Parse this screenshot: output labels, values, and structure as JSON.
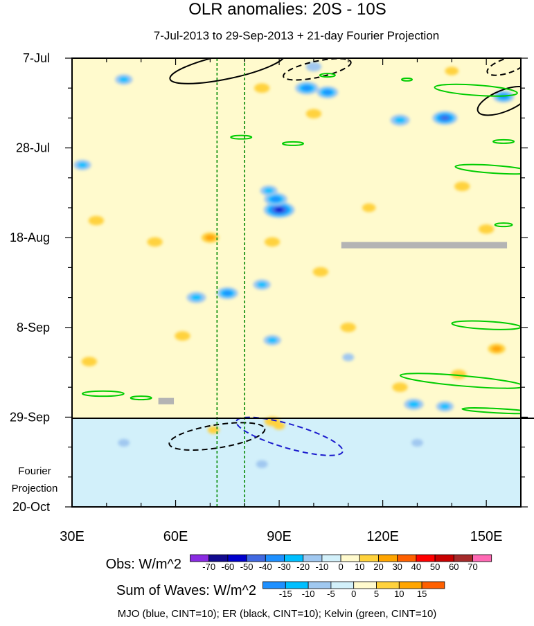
{
  "chart_data": {
    "type": "heatmap",
    "title": "OLR anomalies: 20S - 10S",
    "subtitle": "7-Jul-2013 to 29-Sep-2013 + 21-day Fourier Projection",
    "x_axis": {
      "range": [
        30,
        160
      ],
      "unit": "degrees longitude East",
      "ticks": [
        {
          "value": 30,
          "label": "30E"
        },
        {
          "value": 60,
          "label": "60E"
        },
        {
          "value": 90,
          "label": "90E"
        },
        {
          "value": 120,
          "label": "120E"
        },
        {
          "value": 150,
          "label": "150E"
        }
      ]
    },
    "y_axis": {
      "range_days": [
        0,
        105
      ],
      "direction": "time increases downward",
      "ticks": [
        {
          "day": 0,
          "label": "7-Jul"
        },
        {
          "day": 21,
          "label": "28-Jul"
        },
        {
          "day": 42,
          "label": "18-Aug"
        },
        {
          "day": 63,
          "label": "8-Sep"
        },
        {
          "day": 84,
          "label": "29-Sep"
        },
        {
          "day": 105,
          "label": "20-Oct"
        }
      ]
    },
    "projection": {
      "start_day": 84,
      "label_line1": "Fourier",
      "label_line2": "Projection"
    },
    "reference_lines_lon": [
      72,
      80
    ],
    "obs_colorbar": {
      "title": "Obs: W/m^2",
      "levels": [
        -70,
        -60,
        -50,
        -40,
        -30,
        -20,
        -10,
        0,
        10,
        20,
        30,
        40,
        50,
        60,
        70
      ],
      "labels": [
        "-70",
        "-60",
        "-50",
        "-40",
        "-30",
        "-20",
        "-10",
        "0",
        "10",
        "20",
        "30",
        "40",
        "50",
        "60",
        "70"
      ],
      "colors": [
        "#8a2be2",
        "#120a8f",
        "#0000cd",
        "#4169e1",
        "#1e90ff",
        "#00bfff",
        "#a0c8f0",
        "#d2f0fa",
        "#fffacd",
        "#ffd23c",
        "#ffa500",
        "#ff6000",
        "#ff0000",
        "#c80000",
        "#a52a2a",
        "#ff69b4"
      ]
    },
    "waves_colorbar": {
      "title": "Sum of Waves: W/m^2",
      "levels": [
        -15,
        -10,
        -5,
        0,
        5,
        10,
        15
      ],
      "labels": [
        "-15",
        "-10",
        "-5",
        "0",
        "5",
        "10",
        "15"
      ],
      "colors": [
        "#1e90ff",
        "#00bfff",
        "#a0c8f0",
        "#d2f0fa",
        "#fffacd",
        "#ffd23c",
        "#ffa500",
        "#ff6000"
      ]
    },
    "caption": "MJO (blue, CINT=10); ER (black, CINT=10); Kelvin (green, CINT=10)",
    "anomaly_features": [
      {
        "lon": 90,
        "day": 35.5,
        "value": -55
      },
      {
        "lon": 89,
        "day": 33,
        "value": -35
      },
      {
        "lon": 87,
        "day": 31,
        "value": -20
      },
      {
        "lon": 98,
        "day": 7,
        "value": -35
      },
      {
        "lon": 104,
        "day": 8,
        "value": -30
      },
      {
        "lon": 138,
        "day": 14,
        "value": -40
      },
      {
        "lon": 125,
        "day": 14.5,
        "value": -25
      },
      {
        "lon": 75,
        "day": 55,
        "value": -30
      },
      {
        "lon": 66,
        "day": 56,
        "value": -25
      },
      {
        "lon": 85,
        "day": 53,
        "value": -20
      },
      {
        "lon": 45,
        "day": 5,
        "value": -20
      },
      {
        "lon": 33,
        "day": 25,
        "value": -20
      },
      {
        "lon": 129,
        "day": 81,
        "value": -25
      },
      {
        "lon": 138,
        "day": 81.5,
        "value": -20
      },
      {
        "lon": 88,
        "day": 66,
        "value": -20
      },
      {
        "lon": 100,
        "day": 2,
        "value": -15
      },
      {
        "lon": 155,
        "day": 9,
        "value": -30
      },
      {
        "lon": 54,
        "day": 43,
        "value": 15
      },
      {
        "lon": 70,
        "day": 42,
        "value": 20
      },
      {
        "lon": 88,
        "day": 43,
        "value": 15
      },
      {
        "lon": 37,
        "day": 38,
        "value": 15
      },
      {
        "lon": 100,
        "day": 13,
        "value": 15
      },
      {
        "lon": 85,
        "day": 7,
        "value": 15
      },
      {
        "lon": 102,
        "day": 50,
        "value": 15
      },
      {
        "lon": 110,
        "day": 63,
        "value": 15
      },
      {
        "lon": 143,
        "day": 30,
        "value": 15
      },
      {
        "lon": 150,
        "day": 40,
        "value": 15
      },
      {
        "lon": 153,
        "day": 68,
        "value": 20
      },
      {
        "lon": 35,
        "day": 71,
        "value": 15
      },
      {
        "lon": 125,
        "day": 77,
        "value": 15
      },
      {
        "lon": 88,
        "day": 85,
        "value": 15
      },
      {
        "lon": 142,
        "day": 74,
        "value": 15
      },
      {
        "lon": 62,
        "day": 65,
        "value": 15
      },
      {
        "lon": 116,
        "day": 35,
        "value": 10
      },
      {
        "lon": 140,
        "day": 3,
        "value": 10
      }
    ],
    "wave_features": [
      {
        "lon": 110,
        "day": 70,
        "value": -5
      },
      {
        "lon": 85,
        "day": 95,
        "value": -5
      },
      {
        "lon": 130,
        "day": 90,
        "value": -5
      },
      {
        "lon": 45,
        "day": 90,
        "value": -5
      },
      {
        "lon": 90,
        "day": 86,
        "value": 5
      },
      {
        "lon": 71,
        "day": 87,
        "value": 5
      }
    ],
    "missing_data": [
      {
        "lon": [
          108,
          156
        ],
        "day": [
          43,
          44.5
        ]
      },
      {
        "lon": [
          55,
          59.5
        ],
        "day": [
          79.5,
          81
        ]
      }
    ],
    "contours": [
      {
        "wave": "ER",
        "color": "black",
        "sign": "positive",
        "cx": 75,
        "cy": 2,
        "rx": 17,
        "ry": 2.8,
        "angle": -12
      },
      {
        "wave": "ER",
        "color": "black",
        "sign": "negative",
        "cx": 101,
        "cy": 2.6,
        "rx": 10,
        "ry": 1.9,
        "angle": -12
      },
      {
        "wave": "ER",
        "color": "black",
        "sign": "negative",
        "cx": 156,
        "cy": 1.8,
        "rx": 6,
        "ry": 1.7,
        "angle": -18
      },
      {
        "wave": "ER",
        "color": "black",
        "sign": "positive",
        "cx": 155,
        "cy": 10,
        "rx": 8,
        "ry": 2.5,
        "angle": -22
      },
      {
        "wave": "ER",
        "color": "black",
        "sign": "negative",
        "cx": 72,
        "cy": 88.5,
        "rx": 14,
        "ry": 2.7,
        "angle": -9
      },
      {
        "wave": "MJO",
        "color": "blue",
        "sign": "negative",
        "cx": 93,
        "cy": 88.5,
        "rx": 16,
        "ry": 2.8,
        "angle": 16
      },
      {
        "wave": "Kelvin",
        "color": "green",
        "sign": "positive",
        "cx": 147,
        "cy": 7.5,
        "rx": 12,
        "ry": 1.2,
        "angle": 4
      },
      {
        "wave": "Kelvin",
        "color": "green",
        "sign": "positive",
        "cx": 152,
        "cy": 26,
        "rx": 11,
        "ry": 0.9,
        "angle": 4
      },
      {
        "wave": "Kelvin",
        "color": "green",
        "sign": "positive",
        "cx": 143,
        "cy": 75.5,
        "rx": 18,
        "ry": 1.2,
        "angle": 5
      },
      {
        "wave": "Kelvin",
        "color": "green",
        "sign": "positive",
        "cx": 150,
        "cy": 62.5,
        "rx": 10,
        "ry": 0.9,
        "angle": 3
      },
      {
        "wave": "Kelvin",
        "color": "green",
        "sign": "positive",
        "cx": 39,
        "cy": 78.5,
        "rx": 6,
        "ry": 0.6,
        "angle": 0
      },
      {
        "wave": "Kelvin",
        "color": "green",
        "sign": "positive",
        "cx": 104,
        "cy": 4,
        "rx": 2.2,
        "ry": 0.4,
        "angle": 0
      },
      {
        "wave": "Kelvin",
        "color": "green",
        "sign": "positive",
        "cx": 94,
        "cy": 20,
        "rx": 3,
        "ry": 0.4,
        "angle": 0
      },
      {
        "wave": "Kelvin",
        "color": "green",
        "sign": "positive",
        "cx": 79,
        "cy": 18.5,
        "rx": 3,
        "ry": 0.4,
        "angle": 0
      },
      {
        "wave": "Kelvin",
        "color": "green",
        "sign": "positive",
        "cx": 155,
        "cy": 19.5,
        "rx": 3,
        "ry": 0.4,
        "angle": 0
      },
      {
        "wave": "Kelvin",
        "color": "green",
        "sign": "positive",
        "cx": 127,
        "cy": 5,
        "rx": 1.5,
        "ry": 0.3,
        "angle": 0
      },
      {
        "wave": "Kelvin",
        "color": "green",
        "sign": "positive",
        "cx": 155,
        "cy": 39,
        "rx": 2.5,
        "ry": 0.4,
        "angle": 0
      },
      {
        "wave": "Kelvin",
        "color": "green",
        "sign": "positive",
        "cx": 50,
        "cy": 79.5,
        "rx": 3,
        "ry": 0.4,
        "angle": 0
      },
      {
        "wave": "Kelvin",
        "color": "green",
        "sign": "positive",
        "cx": 153,
        "cy": 82.5,
        "rx": 10,
        "ry": 0.5,
        "angle": 3
      }
    ]
  }
}
